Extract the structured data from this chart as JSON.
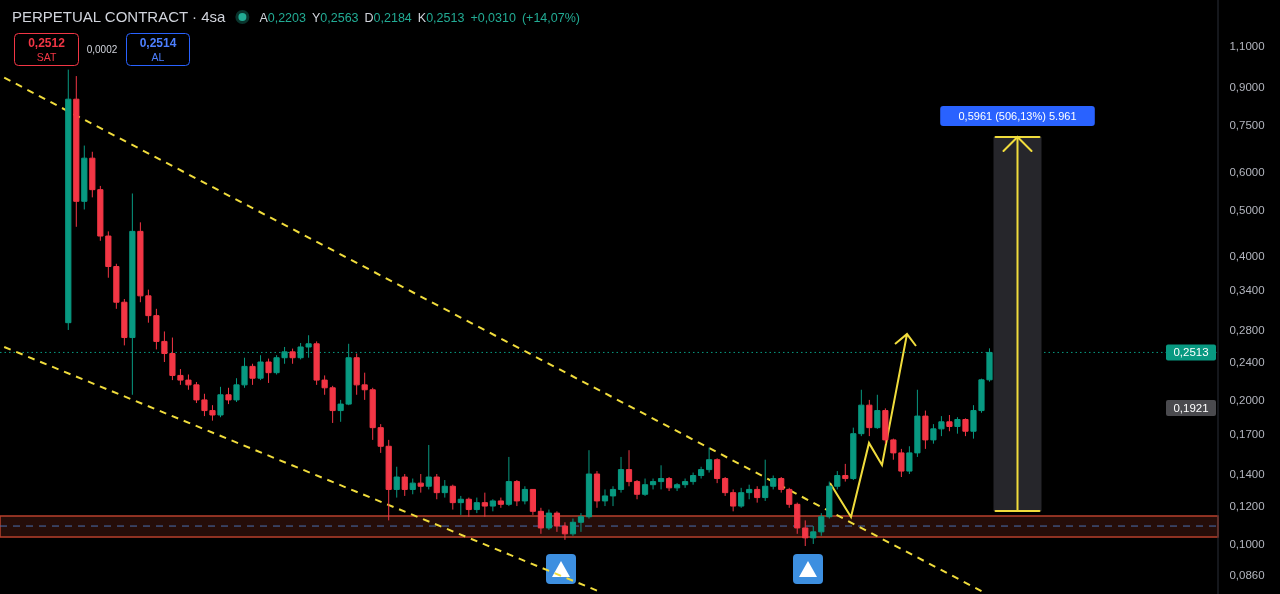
{
  "chart_data": {
    "type": "candlestick",
    "title": "PERPETUAL CONTRACT · 4sa",
    "subtitle": "A0,2203 Y0,2563 D0,2184 K0,2513 +0,0310 (+14,07%)",
    "categories": [
      null,
      null,
      null,
      null,
      null,
      null,
      null,
      null,
      null,
      null,
      null,
      null,
      null,
      null,
      null,
      null,
      null,
      null,
      null,
      null,
      null,
      null,
      null,
      null,
      null,
      null,
      null,
      null,
      null,
      null,
      null,
      null,
      null,
      null,
      null,
      null,
      null,
      null,
      null,
      null,
      null,
      null,
      null,
      null,
      null,
      null,
      null,
      null,
      null,
      null,
      null,
      null,
      null,
      null,
      null,
      null,
      null,
      null,
      null,
      null,
      null,
      null,
      null,
      null,
      null,
      null,
      null,
      null,
      null,
      null,
      null,
      null,
      null,
      null,
      null,
      null,
      null,
      null,
      null,
      null,
      null,
      null,
      null,
      null,
      null,
      null,
      null,
      null,
      null,
      null,
      null,
      null,
      null,
      null,
      null,
      null,
      null,
      null,
      null,
      null,
      null,
      null,
      null,
      null,
      null,
      null,
      null,
      null,
      null,
      null,
      null,
      null,
      null,
      null,
      null,
      null,
      null,
      null,
      null,
      null,
      null,
      null,
      null,
      null,
      null,
      null,
      null,
      null,
      null,
      null,
      null,
      null,
      null,
      null,
      null,
      null,
      null,
      null,
      null,
      null,
      null,
      null,
      null,
      null,
      null,
      null,
      null,
      null,
      null,
      null,
      null,
      null
    ],
    "ohlc": [
      null,
      null,
      null,
      null,
      null,
      null,
      null,
      null,
      [
        0.29,
        0.98,
        0.28,
        0.85
      ],
      [
        0.85,
        0.95,
        0.46,
        0.52
      ],
      [
        0.52,
        0.68,
        0.5,
        0.64
      ],
      [
        0.64,
        0.66,
        0.53,
        0.55
      ],
      [
        0.55,
        0.56,
        0.43,
        0.44
      ],
      [
        0.44,
        0.45,
        0.36,
        0.38
      ],
      [
        0.38,
        0.385,
        0.31,
        0.32
      ],
      [
        0.32,
        0.325,
        0.26,
        0.27
      ],
      [
        0.27,
        0.54,
        0.205,
        0.45
      ],
      [
        0.45,
        0.47,
        0.32,
        0.33
      ],
      [
        0.33,
        0.34,
        0.29,
        0.3
      ],
      [
        0.3,
        0.31,
        0.255,
        0.265
      ],
      [
        0.265,
        0.278,
        0.24,
        0.25
      ],
      [
        0.25,
        0.27,
        0.22,
        0.225
      ],
      [
        0.225,
        0.232,
        0.215,
        0.22
      ],
      [
        0.22,
        0.226,
        0.21,
        0.215
      ],
      [
        0.215,
        0.218,
        0.197,
        0.2
      ],
      [
        0.2,
        0.206,
        0.185,
        0.19
      ],
      [
        0.19,
        0.195,
        0.181,
        0.186
      ],
      [
        0.186,
        0.213,
        0.184,
        0.205
      ],
      [
        0.205,
        0.212,
        0.196,
        0.2
      ],
      [
        0.2,
        0.222,
        0.198,
        0.215
      ],
      [
        0.215,
        0.245,
        0.212,
        0.235
      ],
      [
        0.235,
        0.238,
        0.215,
        0.222
      ],
      [
        0.222,
        0.248,
        0.22,
        0.24
      ],
      [
        0.24,
        0.244,
        0.217,
        0.228
      ],
      [
        0.228,
        0.248,
        0.226,
        0.245
      ],
      [
        0.245,
        0.258,
        0.238,
        0.252
      ],
      [
        0.252,
        0.256,
        0.238,
        0.245
      ],
      [
        0.245,
        0.263,
        0.243,
        0.258
      ],
      [
        0.258,
        0.273,
        0.245,
        0.262
      ],
      [
        0.262,
        0.265,
        0.215,
        0.22
      ],
      [
        0.22,
        0.225,
        0.205,
        0.212
      ],
      [
        0.212,
        0.214,
        0.179,
        0.19
      ],
      [
        0.19,
        0.2,
        0.18,
        0.196
      ],
      [
        0.196,
        0.262,
        0.195,
        0.245
      ],
      [
        0.245,
        0.25,
        0.205,
        0.215
      ],
      [
        0.215,
        0.228,
        0.2,
        0.21
      ],
      [
        0.21,
        0.212,
        0.165,
        0.175
      ],
      [
        0.175,
        0.178,
        0.155,
        0.16
      ],
      [
        0.16,
        0.165,
        0.112,
        0.13
      ],
      [
        0.13,
        0.145,
        0.125,
        0.138
      ],
      [
        0.138,
        0.14,
        0.126,
        0.13
      ],
      [
        0.13,
        0.137,
        0.127,
        0.134
      ],
      [
        0.134,
        0.14,
        0.128,
        0.132
      ],
      [
        0.132,
        0.161,
        0.13,
        0.138
      ],
      [
        0.138,
        0.14,
        0.124,
        0.128
      ],
      [
        0.128,
        0.136,
        0.125,
        0.132
      ],
      [
        0.132,
        0.133,
        0.118,
        0.122
      ],
      [
        0.122,
        0.126,
        0.115,
        0.124
      ],
      [
        0.124,
        0.125,
        0.114,
        0.118
      ],
      [
        0.118,
        0.125,
        0.116,
        0.122
      ],
      [
        0.122,
        0.128,
        0.114,
        0.12
      ],
      [
        0.12,
        0.124,
        0.117,
        0.123
      ],
      [
        0.123,
        0.125,
        0.119,
        0.121
      ],
      [
        0.121,
        0.152,
        0.12,
        0.135
      ],
      [
        0.135,
        0.136,
        0.12,
        0.123
      ],
      [
        0.123,
        0.132,
        0.121,
        0.13
      ],
      [
        0.13,
        0.13,
        0.115,
        0.117
      ],
      [
        0.117,
        0.119,
        0.105,
        0.108
      ],
      [
        0.108,
        0.118,
        0.107,
        0.116
      ],
      [
        0.116,
        0.117,
        0.106,
        0.109
      ],
      [
        0.109,
        0.111,
        0.102,
        0.105
      ],
      [
        0.105,
        0.113,
        0.104,
        0.111
      ],
      [
        0.111,
        0.116,
        0.106,
        0.114
      ],
      [
        0.114,
        0.157,
        0.113,
        0.14
      ],
      [
        0.14,
        0.142,
        0.119,
        0.123
      ],
      [
        0.123,
        0.13,
        0.12,
        0.126
      ],
      [
        0.126,
        0.132,
        0.12,
        0.13
      ],
      [
        0.13,
        0.152,
        0.128,
        0.143
      ],
      [
        0.143,
        0.157,
        0.132,
        0.135
      ],
      [
        0.135,
        0.136,
        0.124,
        0.127
      ],
      [
        0.127,
        0.137,
        0.126,
        0.133
      ],
      [
        0.133,
        0.137,
        0.13,
        0.135
      ],
      [
        0.135,
        0.146,
        0.13,
        0.137
      ],
      [
        0.137,
        0.138,
        0.129,
        0.131
      ],
      [
        0.131,
        0.134,
        0.129,
        0.133
      ],
      [
        0.133,
        0.137,
        0.131,
        0.135
      ],
      [
        0.135,
        0.141,
        0.133,
        0.139
      ],
      [
        0.139,
        0.145,
        0.137,
        0.143
      ],
      [
        0.143,
        0.159,
        0.141,
        0.15
      ],
      [
        0.15,
        0.151,
        0.134,
        0.137
      ],
      [
        0.137,
        0.138,
        0.126,
        0.128
      ],
      [
        0.128,
        0.13,
        0.117,
        0.12
      ],
      [
        0.12,
        0.131,
        0.119,
        0.128
      ],
      [
        0.128,
        0.133,
        0.124,
        0.13
      ],
      [
        0.13,
        0.132,
        0.122,
        0.125
      ],
      [
        0.125,
        0.15,
        0.123,
        0.132
      ],
      [
        0.132,
        0.139,
        0.13,
        0.137
      ],
      [
        0.137,
        0.138,
        0.128,
        0.13
      ],
      [
        0.13,
        0.131,
        0.119,
        0.121
      ],
      [
        0.121,
        0.122,
        0.105,
        0.108
      ],
      [
        0.108,
        0.112,
        0.099,
        0.103
      ],
      [
        0.103,
        0.109,
        0.1,
        0.106
      ],
      [
        0.106,
        0.116,
        0.104,
        0.114
      ],
      [
        0.114,
        0.135,
        0.113,
        0.132
      ],
      [
        0.132,
        0.142,
        0.13,
        0.139
      ],
      [
        0.139,
        0.147,
        0.135,
        0.137
      ],
      [
        0.137,
        0.175,
        0.136,
        0.17
      ],
      [
        0.17,
        0.21,
        0.168,
        0.195
      ],
      [
        0.195,
        0.2,
        0.168,
        0.175
      ],
      [
        0.175,
        0.205,
        0.174,
        0.19
      ],
      [
        0.19,
        0.192,
        0.162,
        0.165
      ],
      [
        0.165,
        0.166,
        0.15,
        0.155
      ],
      [
        0.155,
        0.158,
        0.138,
        0.142
      ],
      [
        0.142,
        0.16,
        0.14,
        0.155
      ],
      [
        0.155,
        0.21,
        0.152,
        0.185
      ],
      [
        0.185,
        0.19,
        0.158,
        0.165
      ],
      [
        0.165,
        0.178,
        0.162,
        0.174
      ],
      [
        0.174,
        0.185,
        0.168,
        0.18
      ],
      [
        0.18,
        0.186,
        0.172,
        0.176
      ],
      [
        0.176,
        0.184,
        0.17,
        0.182
      ],
      [
        0.182,
        0.183,
        0.168,
        0.172
      ],
      [
        0.172,
        0.195,
        0.166,
        0.19
      ],
      [
        0.19,
        0.2215,
        0.188,
        0.2203
      ],
      [
        0.2203,
        0.2563,
        0.2184,
        0.2513
      ],
      null,
      null,
      null,
      null,
      null,
      null,
      null,
      null,
      null,
      null,
      null,
      null,
      null,
      null,
      null,
      null,
      null,
      null,
      null,
      null,
      null,
      null,
      null,
      null,
      null,
      null,
      null,
      null
    ],
    "series": [
      {
        "type": "line",
        "color": "#f0dc3c",
        "line_style": "dashed",
        "values": [
          0.943,
          null,
          null,
          null,
          null,
          null,
          null,
          null,
          null,
          null,
          null,
          null,
          null,
          null,
          null,
          null,
          null,
          null,
          null,
          null,
          null,
          null,
          null,
          null,
          null,
          null,
          null,
          null,
          null,
          null,
          null,
          null,
          null,
          null,
          null,
          null,
          null,
          null,
          null,
          null,
          null,
          null,
          null,
          null,
          null,
          null,
          null,
          null,
          null,
          null,
          null,
          null,
          null,
          null,
          null,
          null,
          null,
          null,
          null,
          null,
          null,
          null,
          null,
          null,
          null,
          null,
          null,
          null,
          null,
          null,
          null,
          null,
          null,
          null,
          null,
          null,
          null,
          null,
          null,
          null,
          null,
          null,
          null,
          null,
          null,
          null,
          null,
          null,
          null,
          null,
          null,
          null,
          null,
          null,
          null,
          null,
          null,
          null,
          null,
          null,
          null,
          null,
          null,
          null,
          null,
          null,
          null,
          null,
          null,
          null,
          null,
          null,
          null,
          null,
          null,
          null,
          null,
          null,
          null,
          null,
          null,
          null,
          0.0797,
          null,
          null,
          null,
          null,
          null,
          null,
          null,
          null,
          null,
          null,
          null,
          null,
          null,
          null,
          null,
          null,
          null,
          null,
          null,
          null,
          null,
          null,
          null,
          null,
          null,
          null,
          null,
          null,
          null
        ]
      },
      {
        "type": "line",
        "color": "#f0dc3c",
        "line_style": "dashed",
        "values": [
          0.258,
          null,
          null,
          null,
          null,
          null,
          null,
          null,
          null,
          null,
          null,
          null,
          null,
          null,
          null,
          null,
          null,
          null,
          null,
          null,
          null,
          null,
          null,
          null,
          null,
          null,
          null,
          null,
          null,
          null,
          null,
          null,
          null,
          null,
          null,
          null,
          null,
          null,
          null,
          null,
          null,
          null,
          null,
          null,
          null,
          null,
          null,
          null,
          null,
          null,
          null,
          null,
          null,
          null,
          null,
          null,
          null,
          null,
          null,
          null,
          null,
          null,
          null,
          null,
          null,
          null,
          null,
          null,
          null,
          null,
          null,
          null,
          null,
          null,
          0.0799,
          null,
          null,
          null,
          null,
          null,
          null,
          null,
          null,
          null,
          null,
          null,
          null,
          null,
          null,
          null,
          null,
          null,
          null,
          null,
          null,
          null,
          null,
          null,
          null,
          null,
          null,
          null,
          null,
          null,
          null,
          null,
          null,
          null,
          null,
          null,
          null,
          null,
          null,
          null,
          null,
          null,
          null,
          null,
          null,
          null,
          null,
          null,
          null,
          null,
          null,
          null,
          null,
          null,
          null,
          null,
          null,
          null,
          null,
          null,
          null,
          null,
          null,
          null,
          null,
          null,
          null,
          null,
          null,
          null,
          null,
          null,
          null,
          null,
          null,
          null,
          null,
          null
        ]
      }
    ],
    "log": true,
    "ylim": [
      0.0786,
      1.37
    ],
    "yticks": [
      {
        "value": 1.1,
        "label": "1,1000"
      },
      {
        "value": 0.9,
        "label": "0,9000"
      },
      {
        "value": 0.75,
        "label": "0,7500"
      },
      {
        "value": 0.6,
        "label": "0,6000"
      },
      {
        "value": 0.5,
        "label": "0,5000"
      },
      {
        "value": 0.4,
        "label": "0,4000"
      },
      {
        "value": 0.34,
        "label": "0,3400"
      },
      {
        "value": 0.28,
        "label": "0,2800"
      },
      {
        "value": 0.24,
        "label": "0,2400"
      },
      {
        "value": 0.2,
        "label": "0,2000"
      },
      {
        "value": 0.17,
        "label": "0,1700"
      },
      {
        "value": 0.14,
        "label": "0,1400"
      },
      {
        "value": 0.12,
        "label": "0,1200"
      },
      {
        "value": 0.1,
        "label": "0,1000"
      },
      {
        "value": 0.086,
        "label": "0,0860"
      }
    ],
    "tick_labels": "y",
    "ref_lines": [
      {
        "axis": "y",
        "value": 0.2513,
        "label": "0,2513",
        "color": "#089981",
        "line_style": "dotted"
      },
      {
        "axis": "y",
        "value": 0.109,
        "color": "#4a6fb0",
        "line_style": "dashed"
      }
    ],
    "bands": [
      {
        "axis": "y",
        "from": 0.1034,
        "to": 0.1144,
        "color": "#b8402c"
      }
    ],
    "annotations": [
      "0,2512",
      "SAT",
      "0,0002",
      "0,2514",
      "AL",
      "0,5961 (506,13%) 5.961",
      "0,1921"
    ]
  }
}
